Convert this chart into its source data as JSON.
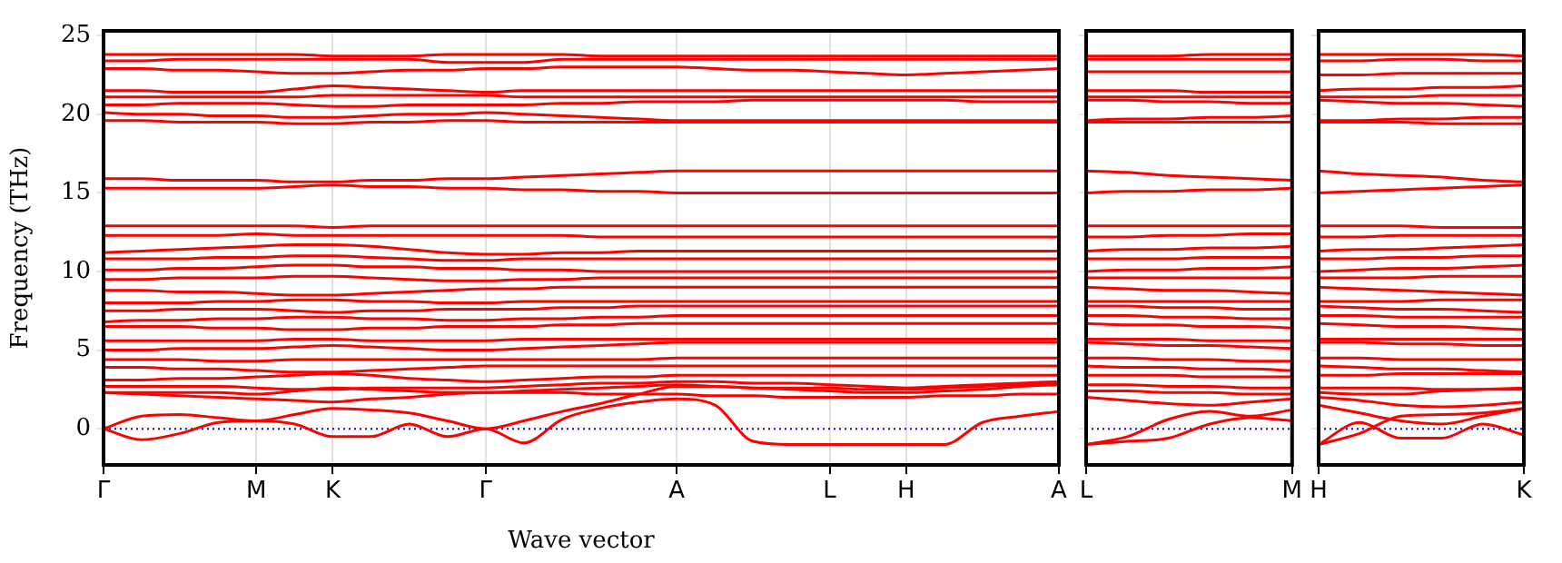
{
  "chart_data": [
    {
      "type": "line",
      "xlabel": "Wave vector",
      "ylabel": "Frequency (THz)",
      "categories": [
        "Γ",
        null,
        null,
        null,
        "M",
        null,
        "K",
        null,
        null,
        null,
        "Γ",
        null,
        null,
        null,
        null,
        "A",
        null,
        null,
        null,
        "L",
        null,
        "H",
        null,
        null,
        null,
        "A"
      ],
      "ylim": [
        -2.3,
        25.3
      ],
      "yticks": [
        0,
        5,
        10,
        15,
        20,
        25
      ],
      "grid": "x",
      "legend": false,
      "marker": "none",
      "ref_lines": [
        {
          "axis": "y",
          "value": 0,
          "color": "#0000ff",
          "line_style": "dotted"
        }
      ],
      "series": [
        {
          "color": "#ff0000",
          "values": [
            23.8,
            23.8,
            23.8,
            23.8,
            23.8,
            23.8,
            23.7,
            23.7,
            23.7,
            23.8,
            23.8,
            23.8,
            23.8,
            23.7,
            23.7,
            23.7,
            23.7,
            23.7,
            23.7,
            23.7,
            23.7,
            23.7,
            23.7,
            23.7,
            23.7,
            23.7
          ]
        },
        {
          "color": "#ff0000",
          "values": [
            23.4,
            23.4,
            23.5,
            23.5,
            23.5,
            23.5,
            23.5,
            23.5,
            23.5,
            23.3,
            23.3,
            23.3,
            23.5,
            23.5,
            23.5,
            23.5,
            23.5,
            23.5,
            23.5,
            23.5,
            23.5,
            23.5,
            23.5,
            23.5,
            23.5,
            23.5
          ]
        },
        {
          "color": "#ff0000",
          "values": [
            22.9,
            22.9,
            22.8,
            22.8,
            22.7,
            22.6,
            22.6,
            22.7,
            22.8,
            22.8,
            22.9,
            22.9,
            23.0,
            23.0,
            23.0,
            23.0,
            22.9,
            22.8,
            22.8,
            22.7,
            22.6,
            22.5,
            22.6,
            22.7,
            22.8,
            22.9
          ]
        },
        {
          "color": "#ff0000",
          "values": [
            21.5,
            21.5,
            21.4,
            21.4,
            21.4,
            21.6,
            21.8,
            21.7,
            21.6,
            21.5,
            21.4,
            21.5,
            21.5,
            21.5,
            21.5,
            21.5,
            21.5,
            21.5,
            21.5,
            21.5,
            21.5,
            21.5,
            21.5,
            21.5,
            21.5,
            21.5
          ]
        },
        {
          "color": "#ff0000",
          "values": [
            21.1,
            21.1,
            21.1,
            21.1,
            21.1,
            21.1,
            21.2,
            21.2,
            21.2,
            21.2,
            21.2,
            21.1,
            21.1,
            21.1,
            21.1,
            21.1,
            21.1,
            21.1,
            21.1,
            21.1,
            21.1,
            21.1,
            21.1,
            21.1,
            21.1,
            21.1
          ]
        },
        {
          "color": "#ff0000",
          "values": [
            20.6,
            20.6,
            20.7,
            20.7,
            20.7,
            20.6,
            20.5,
            20.5,
            20.6,
            20.6,
            20.6,
            20.6,
            20.7,
            20.7,
            20.8,
            20.8,
            20.8,
            20.9,
            20.9,
            20.9,
            20.9,
            20.9,
            20.9,
            20.8,
            20.8,
            20.8
          ]
        },
        {
          "color": "#ff0000",
          "values": [
            20.1,
            20.0,
            20.0,
            19.9,
            19.9,
            19.8,
            19.8,
            19.9,
            20.0,
            20.0,
            20.1,
            20.0,
            19.9,
            19.8,
            19.7,
            19.6,
            19.6,
            19.6,
            19.6,
            19.6,
            19.6,
            19.6,
            19.6,
            19.6,
            19.6,
            19.6
          ]
        },
        {
          "color": "#ff0000",
          "values": [
            19.6,
            19.6,
            19.5,
            19.5,
            19.5,
            19.4,
            19.4,
            19.5,
            19.5,
            19.6,
            19.6,
            19.5,
            19.5,
            19.5,
            19.5,
            19.5,
            19.5,
            19.5,
            19.5,
            19.5,
            19.5,
            19.5,
            19.5,
            19.5,
            19.5,
            19.5
          ]
        },
        {
          "color": "#ff0000",
          "values": [
            15.9,
            15.9,
            15.8,
            15.8,
            15.8,
            15.7,
            15.7,
            15.8,
            15.8,
            15.9,
            15.9,
            16.0,
            16.1,
            16.2,
            16.3,
            16.4,
            16.4,
            16.4,
            16.4,
            16.4,
            16.4,
            16.4,
            16.4,
            16.4,
            16.4,
            16.4
          ]
        },
        {
          "color": "#ff0000",
          "values": [
            15.3,
            15.3,
            15.3,
            15.3,
            15.3,
            15.4,
            15.5,
            15.4,
            15.4,
            15.3,
            15.3,
            15.2,
            15.2,
            15.1,
            15.1,
            15.0,
            15.0,
            15.0,
            15.0,
            15.0,
            15.0,
            15.0,
            15.0,
            15.0,
            15.0,
            15.0
          ]
        },
        {
          "color": "#ff0000",
          "values": [
            12.9,
            12.9,
            12.9,
            12.9,
            12.9,
            12.9,
            12.8,
            12.9,
            12.9,
            12.9,
            12.9,
            12.9,
            12.9,
            12.9,
            12.9,
            12.9,
            12.9,
            12.9,
            12.9,
            12.9,
            12.9,
            12.9,
            12.9,
            12.9,
            12.9,
            12.9
          ]
        },
        {
          "color": "#ff0000",
          "values": [
            12.3,
            12.3,
            12.3,
            12.3,
            12.4,
            12.3,
            12.3,
            12.3,
            12.3,
            12.3,
            12.3,
            12.3,
            12.3,
            12.2,
            12.2,
            12.2,
            12.2,
            12.2,
            12.2,
            12.2,
            12.2,
            12.2,
            12.2,
            12.2,
            12.2,
            12.2
          ]
        },
        {
          "color": "#ff0000",
          "values": [
            11.2,
            11.3,
            11.4,
            11.5,
            11.6,
            11.7,
            11.7,
            11.6,
            11.4,
            11.2,
            11.1,
            11.1,
            11.2,
            11.2,
            11.3,
            11.3,
            11.3,
            11.3,
            11.3,
            11.3,
            11.3,
            11.3,
            11.3,
            11.3,
            11.3,
            11.3
          ]
        },
        {
          "color": "#ff0000",
          "values": [
            10.8,
            10.8,
            10.8,
            10.9,
            10.9,
            11.0,
            11.0,
            10.9,
            10.8,
            10.7,
            10.7,
            10.8,
            10.8,
            10.8,
            10.8,
            10.8,
            10.8,
            10.8,
            10.8,
            10.8,
            10.8,
            10.8,
            10.8,
            10.8,
            10.8,
            10.8
          ]
        },
        {
          "color": "#ff0000",
          "values": [
            10.1,
            10.1,
            10.2,
            10.2,
            10.3,
            10.4,
            10.4,
            10.3,
            10.3,
            10.2,
            10.2,
            10.1,
            10.1,
            10.0,
            10.0,
            10.0,
            10.0,
            10.0,
            10.0,
            10.0,
            10.0,
            10.0,
            10.0,
            10.0,
            10.0,
            10.0
          ]
        },
        {
          "color": "#ff0000",
          "values": [
            9.5,
            9.5,
            9.6,
            9.6,
            9.6,
            9.7,
            9.7,
            9.6,
            9.5,
            9.4,
            9.4,
            9.5,
            9.5,
            9.6,
            9.6,
            9.6,
            9.6,
            9.6,
            9.6,
            9.6,
            9.6,
            9.6,
            9.6,
            9.6,
            9.6,
            9.6
          ]
        },
        {
          "color": "#ff0000",
          "values": [
            8.8,
            8.8,
            8.7,
            8.7,
            8.6,
            8.5,
            8.5,
            8.6,
            8.7,
            8.8,
            8.9,
            8.9,
            9.0,
            9.0,
            9.0,
            9.0,
            9.0,
            9.0,
            9.0,
            9.0,
            9.0,
            9.0,
            9.0,
            9.0,
            9.0,
            9.0
          ]
        },
        {
          "color": "#ff0000",
          "values": [
            8.0,
            8.0,
            8.0,
            8.1,
            8.1,
            8.2,
            8.2,
            8.1,
            8.1,
            8.0,
            8.0,
            8.1,
            8.1,
            8.1,
            8.1,
            8.1,
            8.1,
            8.1,
            8.1,
            8.1,
            8.1,
            8.1,
            8.1,
            8.1,
            8.1,
            8.1
          ]
        },
        {
          "color": "#ff0000",
          "values": [
            7.5,
            7.5,
            7.6,
            7.6,
            7.6,
            7.5,
            7.4,
            7.5,
            7.5,
            7.6,
            7.6,
            7.6,
            7.7,
            7.7,
            7.8,
            7.8,
            7.8,
            7.8,
            7.8,
            7.8,
            7.8,
            7.8,
            7.8,
            7.8,
            7.8,
            7.8
          ]
        },
        {
          "color": "#ff0000",
          "values": [
            6.8,
            6.9,
            6.9,
            7.0,
            7.0,
            7.1,
            7.1,
            7.0,
            7.0,
            6.9,
            6.9,
            7.0,
            7.0,
            7.1,
            7.1,
            7.2,
            7.2,
            7.2,
            7.2,
            7.2,
            7.2,
            7.2,
            7.2,
            7.2,
            7.2,
            7.2
          ]
        },
        {
          "color": "#ff0000",
          "values": [
            6.5,
            6.5,
            6.5,
            6.4,
            6.4,
            6.3,
            6.3,
            6.4,
            6.4,
            6.5,
            6.5,
            6.5,
            6.6,
            6.6,
            6.7,
            6.7,
            6.7,
            6.7,
            6.7,
            6.7,
            6.7,
            6.7,
            6.7,
            6.7,
            6.7,
            6.7
          ]
        },
        {
          "color": "#ff0000",
          "values": [
            5.6,
            5.6,
            5.6,
            5.6,
            5.6,
            5.7,
            5.7,
            5.6,
            5.6,
            5.6,
            5.6,
            5.7,
            5.7,
            5.7,
            5.7,
            5.7,
            5.7,
            5.7,
            5.7,
            5.7,
            5.7,
            5.7,
            5.7,
            5.7,
            5.7,
            5.7
          ]
        },
        {
          "color": "#ff0000",
          "values": [
            5.0,
            5.0,
            5.1,
            5.1,
            5.1,
            5.2,
            5.3,
            5.2,
            5.1,
            5.0,
            5.0,
            5.1,
            5.2,
            5.3,
            5.4,
            5.5,
            5.5,
            5.5,
            5.5,
            5.5,
            5.5,
            5.5,
            5.5,
            5.5,
            5.5,
            5.5
          ]
        },
        {
          "color": "#ff0000",
          "values": [
            4.4,
            4.4,
            4.4,
            4.3,
            4.3,
            4.4,
            4.4,
            4.4,
            4.4,
            4.4,
            4.4,
            4.4,
            4.4,
            4.4,
            4.4,
            4.5,
            4.5,
            4.5,
            4.5,
            4.5,
            4.5,
            4.5,
            4.5,
            4.5,
            4.5,
            4.5
          ]
        },
        {
          "color": "#ff0000",
          "values": [
            3.9,
            3.9,
            3.8,
            3.8,
            3.7,
            3.6,
            3.6,
            3.7,
            3.8,
            3.9,
            4.0,
            4.0,
            4.0,
            4.0,
            4.0,
            4.0,
            4.0,
            4.0,
            4.0,
            4.0,
            4.0,
            4.0,
            4.0,
            4.0,
            4.0,
            4.0
          ]
        },
        {
          "color": "#ff0000",
          "values": [
            3.1,
            3.1,
            3.2,
            3.2,
            3.3,
            3.4,
            3.5,
            3.4,
            3.2,
            3.1,
            3.0,
            3.1,
            3.2,
            3.3,
            3.3,
            3.4,
            3.4,
            3.4,
            3.4,
            3.4,
            3.4,
            3.4,
            3.4,
            3.4,
            3.4,
            3.4
          ]
        },
        {
          "color": "#ff0000",
          "values": [
            2.7,
            2.7,
            2.7,
            2.7,
            2.6,
            2.5,
            2.5,
            2.6,
            2.6,
            2.6,
            2.6,
            2.7,
            2.8,
            2.9,
            2.9,
            3.0,
            3.0,
            2.9,
            2.9,
            2.8,
            2.7,
            2.6,
            2.7,
            2.8,
            2.9,
            3.0
          ]
        },
        {
          "color": "#ff0000",
          "values": [
            2.3,
            2.3,
            2.3,
            2.3,
            2.2,
            2.4,
            2.6,
            2.5,
            2.4,
            2.3,
            2.3,
            2.4,
            2.5,
            2.6,
            2.7,
            2.8,
            2.7,
            2.6,
            2.5,
            2.4,
            2.3,
            2.3,
            2.4,
            2.5,
            2.7,
            2.8
          ]
        },
        {
          "color": "#ff0000",
          "values": [
            2.3,
            2.2,
            2.1,
            2.0,
            1.9,
            1.8,
            1.7,
            1.9,
            2.0,
            2.2,
            2.3,
            2.3,
            2.3,
            2.2,
            2.2,
            2.2,
            2.1,
            2.1,
            2.0,
            2.0,
            2.0,
            2.0,
            2.1,
            2.1,
            2.2,
            2.2
          ]
        },
        {
          "color": "#ff0000",
          "values": [
            0,
            0.8,
            0.9,
            0.7,
            0.5,
            0.9,
            1.3,
            1.2,
            1.0,
            0.5,
            0,
            0.5,
            1.1,
            1.6,
            2.2,
            2.7,
            2.7,
            2.6,
            2.6,
            2.6,
            2.5,
            2.5,
            2.6,
            2.7,
            2.8,
            2.9
          ]
        },
        {
          "color": "#ff0000",
          "values": [
            0,
            -0.7,
            -0.3,
            0.4,
            0.5,
            0.3,
            -0.5,
            -0.5,
            0.3,
            -0.5,
            0,
            -0.9,
            0.6,
            1.3,
            1.7,
            1.9,
            1.5,
            -0.8,
            -1.0,
            -1.0,
            -1.0,
            -1.0,
            -1.0,
            0.4,
            0.8,
            1.1
          ]
        }
      ]
    },
    {
      "type": "line",
      "categories": [
        "L",
        null,
        null,
        null,
        null,
        "M"
      ],
      "ylim": [
        -2.3,
        25.3
      ],
      "yticks": [
        0,
        5,
        10,
        15,
        20,
        25
      ],
      "tick_labels": "x",
      "legend": false,
      "marker": "none",
      "ref_lines": [
        {
          "axis": "y",
          "value": 0,
          "color": "#0000ff",
          "line_style": "dotted"
        }
      ],
      "series": [
        {
          "color": "#ff0000",
          "values": [
            23.7,
            23.7,
            23.7,
            23.8,
            23.8,
            23.8
          ]
        },
        {
          "color": "#ff0000",
          "values": [
            23.5,
            23.5,
            23.5,
            23.5,
            23.5,
            23.5
          ]
        },
        {
          "color": "#ff0000",
          "values": [
            22.7,
            22.7,
            22.7,
            22.7,
            22.7,
            22.7
          ]
        },
        {
          "color": "#ff0000",
          "values": [
            21.5,
            21.5,
            21.5,
            21.4,
            21.4,
            21.4
          ]
        },
        {
          "color": "#ff0000",
          "values": [
            21.1,
            21.1,
            21.1,
            21.1,
            21.1,
            21.1
          ]
        },
        {
          "color": "#ff0000",
          "values": [
            20.9,
            20.9,
            20.8,
            20.8,
            20.7,
            20.7
          ]
        },
        {
          "color": "#ff0000",
          "values": [
            19.6,
            19.7,
            19.7,
            19.8,
            19.8,
            19.9
          ]
        },
        {
          "color": "#ff0000",
          "values": [
            19.5,
            19.5,
            19.5,
            19.5,
            19.5,
            19.5
          ]
        },
        {
          "color": "#ff0000",
          "values": [
            16.4,
            16.3,
            16.1,
            16.0,
            15.9,
            15.8
          ]
        },
        {
          "color": "#ff0000",
          "values": [
            15.0,
            15.1,
            15.1,
            15.2,
            15.2,
            15.3
          ]
        },
        {
          "color": "#ff0000",
          "values": [
            12.9,
            12.9,
            12.9,
            12.9,
            12.9,
            12.9
          ]
        },
        {
          "color": "#ff0000",
          "values": [
            12.2,
            12.2,
            12.3,
            12.3,
            12.4,
            12.4
          ]
        },
        {
          "color": "#ff0000",
          "values": [
            11.3,
            11.4,
            11.4,
            11.5,
            11.5,
            11.6
          ]
        },
        {
          "color": "#ff0000",
          "values": [
            10.8,
            10.8,
            10.8,
            10.9,
            10.9,
            10.9
          ]
        },
        {
          "color": "#ff0000",
          "values": [
            10.0,
            10.1,
            10.1,
            10.2,
            10.2,
            10.3
          ]
        },
        {
          "color": "#ff0000",
          "values": [
            9.6,
            9.6,
            9.6,
            9.6,
            9.6,
            9.6
          ]
        },
        {
          "color": "#ff0000",
          "values": [
            9.0,
            8.9,
            8.8,
            8.8,
            8.7,
            8.6
          ]
        },
        {
          "color": "#ff0000",
          "values": [
            8.1,
            8.1,
            8.1,
            8.1,
            8.1,
            8.1
          ]
        },
        {
          "color": "#ff0000",
          "values": [
            7.8,
            7.8,
            7.7,
            7.7,
            7.6,
            7.6
          ]
        },
        {
          "color": "#ff0000",
          "values": [
            7.2,
            7.2,
            7.1,
            7.1,
            7.0,
            7.0
          ]
        },
        {
          "color": "#ff0000",
          "values": [
            6.7,
            6.6,
            6.6,
            6.5,
            6.5,
            6.4
          ]
        },
        {
          "color": "#ff0000",
          "values": [
            5.7,
            5.7,
            5.7,
            5.6,
            5.6,
            5.6
          ]
        },
        {
          "color": "#ff0000",
          "values": [
            5.5,
            5.4,
            5.3,
            5.3,
            5.2,
            5.1
          ]
        },
        {
          "color": "#ff0000",
          "values": [
            4.5,
            4.5,
            4.4,
            4.4,
            4.3,
            4.3
          ]
        },
        {
          "color": "#ff0000",
          "values": [
            4.0,
            3.9,
            3.9,
            3.8,
            3.8,
            3.7
          ]
        },
        {
          "color": "#ff0000",
          "values": [
            3.4,
            3.4,
            3.4,
            3.3,
            3.3,
            3.3
          ]
        },
        {
          "color": "#ff0000",
          "values": [
            2.8,
            2.8,
            2.7,
            2.7,
            2.6,
            2.6
          ]
        },
        {
          "color": "#ff0000",
          "values": [
            2.4,
            2.4,
            2.3,
            2.3,
            2.2,
            2.2
          ]
        },
        {
          "color": "#ff0000",
          "values": [
            2.0,
            1.8,
            1.6,
            1.5,
            1.7,
            1.9
          ]
        },
        {
          "color": "#ff0000",
          "values": [
            -1.0,
            -0.5,
            0.6,
            1.1,
            0.8,
            1.2
          ]
        },
        {
          "color": "#ff0000",
          "values": [
            -1.0,
            -0.8,
            -0.6,
            0.3,
            0.7,
            0.5
          ]
        }
      ]
    },
    {
      "type": "line",
      "categories": [
        "H",
        null,
        null,
        null,
        null,
        "K"
      ],
      "ylim": [
        -2.3,
        25.3
      ],
      "yticks": [
        0,
        5,
        10,
        15,
        20,
        25
      ],
      "tick_labels": "x",
      "legend": false,
      "marker": "none",
      "ref_lines": [
        {
          "axis": "y",
          "value": 0,
          "color": "#0000ff",
          "line_style": "dotted"
        }
      ],
      "series": [
        {
          "color": "#ff0000",
          "values": [
            23.8,
            23.8,
            23.8,
            23.8,
            23.8,
            23.7
          ]
        },
        {
          "color": "#ff0000",
          "values": [
            23.4,
            23.4,
            23.5,
            23.5,
            23.4,
            23.4
          ]
        },
        {
          "color": "#ff0000",
          "values": [
            22.5,
            22.5,
            22.6,
            22.6,
            22.6,
            22.6
          ]
        },
        {
          "color": "#ff0000",
          "values": [
            21.5,
            21.6,
            21.6,
            21.7,
            21.7,
            21.8
          ]
        },
        {
          "color": "#ff0000",
          "values": [
            21.1,
            21.1,
            21.1,
            21.2,
            21.2,
            21.2
          ]
        },
        {
          "color": "#ff0000",
          "values": [
            20.9,
            20.8,
            20.7,
            20.7,
            20.6,
            20.5
          ]
        },
        {
          "color": "#ff0000",
          "values": [
            19.6,
            19.6,
            19.7,
            19.7,
            19.8,
            19.8
          ]
        },
        {
          "color": "#ff0000",
          "values": [
            19.5,
            19.5,
            19.5,
            19.4,
            19.4,
            19.4
          ]
        },
        {
          "color": "#ff0000",
          "values": [
            16.4,
            16.2,
            16.1,
            16.0,
            15.8,
            15.7
          ]
        },
        {
          "color": "#ff0000",
          "values": [
            15.0,
            15.1,
            15.2,
            15.3,
            15.4,
            15.5
          ]
        },
        {
          "color": "#ff0000",
          "values": [
            12.9,
            12.9,
            12.9,
            12.8,
            12.8,
            12.8
          ]
        },
        {
          "color": "#ff0000",
          "values": [
            12.2,
            12.2,
            12.3,
            12.3,
            12.3,
            12.3
          ]
        },
        {
          "color": "#ff0000",
          "values": [
            11.3,
            11.4,
            11.4,
            11.5,
            11.6,
            11.7
          ]
        },
        {
          "color": "#ff0000",
          "values": [
            10.8,
            10.8,
            10.9,
            10.9,
            11.0,
            11.0
          ]
        },
        {
          "color": "#ff0000",
          "values": [
            10.0,
            10.1,
            10.2,
            10.2,
            10.3,
            10.4
          ]
        },
        {
          "color": "#ff0000",
          "values": [
            9.6,
            9.6,
            9.6,
            9.7,
            9.7,
            9.7
          ]
        },
        {
          "color": "#ff0000",
          "values": [
            9.0,
            8.9,
            8.8,
            8.7,
            8.6,
            8.5
          ]
        },
        {
          "color": "#ff0000",
          "values": [
            8.1,
            8.1,
            8.1,
            8.2,
            8.2,
            8.2
          ]
        },
        {
          "color": "#ff0000",
          "values": [
            7.8,
            7.7,
            7.6,
            7.6,
            7.5,
            7.4
          ]
        },
        {
          "color": "#ff0000",
          "values": [
            7.2,
            7.2,
            7.1,
            7.1,
            7.1,
            7.1
          ]
        },
        {
          "color": "#ff0000",
          "values": [
            6.7,
            6.6,
            6.5,
            6.5,
            6.4,
            6.3
          ]
        },
        {
          "color": "#ff0000",
          "values": [
            5.7,
            5.7,
            5.7,
            5.7,
            5.7,
            5.7
          ]
        },
        {
          "color": "#ff0000",
          "values": [
            5.5,
            5.5,
            5.4,
            5.4,
            5.3,
            5.3
          ]
        },
        {
          "color": "#ff0000",
          "values": [
            4.5,
            4.5,
            4.4,
            4.4,
            4.4,
            4.4
          ]
        },
        {
          "color": "#ff0000",
          "values": [
            4.0,
            3.9,
            3.8,
            3.8,
            3.7,
            3.6
          ]
        },
        {
          "color": "#ff0000",
          "values": [
            3.4,
            3.4,
            3.5,
            3.5,
            3.5,
            3.5
          ]
        },
        {
          "color": "#ff0000",
          "values": [
            2.6,
            2.6,
            2.6,
            2.5,
            2.5,
            2.5
          ]
        },
        {
          "color": "#ff0000",
          "values": [
            2.3,
            2.2,
            2.2,
            2.4,
            2.5,
            2.6
          ]
        },
        {
          "color": "#ff0000",
          "values": [
            2.0,
            1.8,
            1.5,
            1.4,
            1.5,
            1.7
          ]
        },
        {
          "color": "#ff0000",
          "values": [
            -1.0,
            -0.3,
            0.8,
            0.9,
            1.0,
            1.3
          ]
        },
        {
          "color": "#ff0000",
          "values": [
            -1.0,
            0.4,
            -0.6,
            -0.6,
            0.3,
            -0.4
          ]
        },
        {
          "color": "#ff0000",
          "values": [
            1.5,
            1.0,
            0.5,
            0.3,
            0.8,
            1.3
          ]
        }
      ]
    }
  ]
}
